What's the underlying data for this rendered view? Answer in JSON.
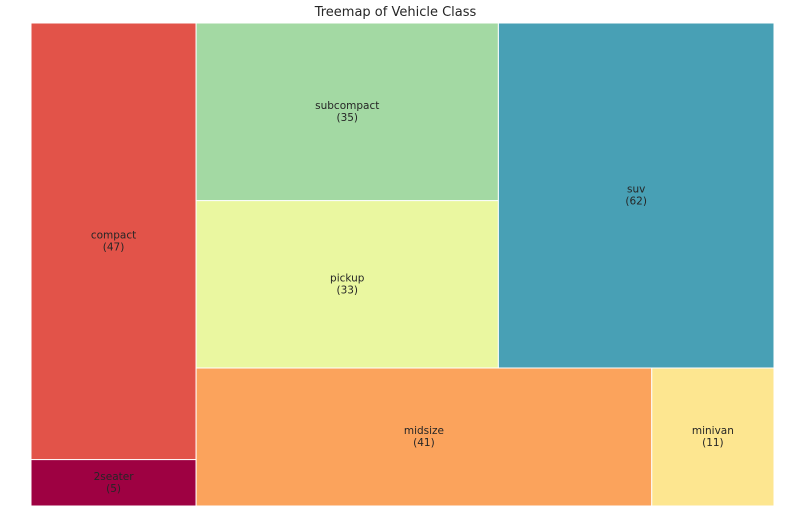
{
  "chart_data": {
    "type": "treemap",
    "title": "Treemap of Vehicle Class",
    "items": [
      {
        "label": "2seater",
        "value": 5,
        "color": "#9e0142"
      },
      {
        "label": "compact",
        "value": 47,
        "color": "#e25349"
      },
      {
        "label": "midsize",
        "value": 41,
        "color": "#fba35c"
      },
      {
        "label": "minivan",
        "value": 11,
        "color": "#fde690"
      },
      {
        "label": "pickup",
        "value": 33,
        "color": "#eaf7a0"
      },
      {
        "label": "subcompact",
        "value": 35,
        "color": "#a3d9a3"
      },
      {
        "label": "suv",
        "value": 62,
        "color": "#48a0b5"
      }
    ]
  }
}
